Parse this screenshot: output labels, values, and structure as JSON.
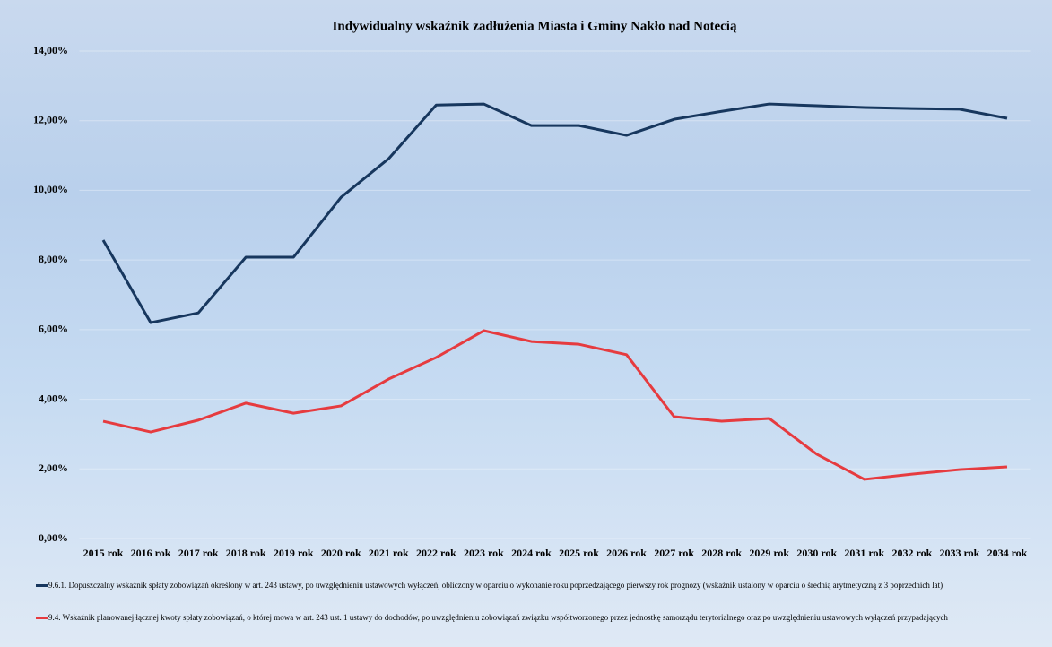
{
  "chart_data": {
    "type": "line",
    "title": "Indywidualny wskaźnik zadłużenia Miasta i Gminy Nakło nad Notecią",
    "categories": [
      "2015 rok",
      "2016 rok",
      "2017 rok",
      "2018 rok",
      "2019 rok",
      "2020 rok",
      "2021 rok",
      "2022 rok",
      "2023 rok",
      "2024 rok",
      "2025 rok",
      "2026 rok",
      "2027 rok",
      "2028 rok",
      "2029 rok",
      "2030 rok",
      "2031 rok",
      "2032 rok",
      "2033 rok",
      "2034 rok"
    ],
    "series": [
      {
        "name": "9.6.1. Dopuszczalny wskaźnik spłaty zobowiązań określony w art. 243 ustawy, po uwzględnieniu ustawowych wyłączeń, obliczony w oparciu o wykonanie roku poprzedzającego pierwszy rok prognozy (wskaźnik ustalony w oparciu o średnią arytmetyczną z 3 poprzednich lat)",
        "color": "#17375e",
        "values": [
          8.57,
          6.2,
          6.48,
          8.08,
          8.08,
          9.8,
          10.91,
          12.45,
          12.48,
          11.86,
          11.86,
          11.58,
          12.04,
          12.27,
          12.48,
          12.43,
          12.38,
          12.35,
          12.33,
          12.07
        ]
      },
      {
        "name": "9.4. Wskaźnik planowanej łącznej kwoty spłaty zobowiązań, o której mowa w art. 243 ust. 1 ustawy do dochodów, po uwzględnieniu zobowiązań związku współtworzonego przez jednostkę samorządu terytorialnego oraz po uwzględnieniu ustawowych wyłączeń przypadających",
        "color": "#e63b3f",
        "values": [
          3.37,
          3.06,
          3.4,
          3.89,
          3.6,
          3.81,
          4.58,
          5.2,
          5.97,
          5.66,
          5.58,
          5.28,
          3.5,
          3.37,
          3.45,
          2.42,
          1.7,
          1.85,
          1.98,
          2.06
        ]
      }
    ],
    "ylim": [
      0,
      14
    ],
    "yticks": [
      {
        "value": 0,
        "label": "0,00%"
      },
      {
        "value": 2,
        "label": "2,00%"
      },
      {
        "value": 4,
        "label": "4,00%"
      },
      {
        "value": 6,
        "label": "6,00%"
      },
      {
        "value": 8,
        "label": "8,00%"
      },
      {
        "value": 10,
        "label": "10,00%"
      },
      {
        "value": 12,
        "label": "12,00%"
      },
      {
        "value": 14,
        "label": "14,00%"
      }
    ],
    "grid": true
  }
}
